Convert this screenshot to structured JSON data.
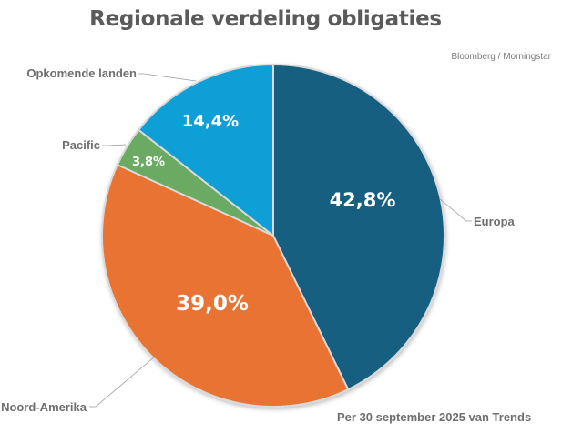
{
  "title": "Regionale verdeling obligaties",
  "source": "Bloomberg / Morningstar",
  "footnote": "Per 30 september 2025 van Trends",
  "slices": [
    {
      "name": "Europa",
      "value": 42.8,
      "label": "42,8%",
      "color": "#165e81"
    },
    {
      "name": "Noord-Amerika",
      "value": 39.0,
      "label": "39,0%",
      "color": "#e87332"
    },
    {
      "name": "Pacific",
      "value": 3.8,
      "label": "3,8%",
      "color": "#6aaa64"
    },
    {
      "name": "Opkomende landen",
      "value": 14.4,
      "label": "14,4%",
      "color": "#119fd6"
    }
  ],
  "chart_data": {
    "type": "pie",
    "title": "Regionale verdeling obligaties",
    "categories": [
      "Europa",
      "Noord-Amerika",
      "Pacific",
      "Opkomende landen"
    ],
    "values": [
      42.8,
      39.0,
      3.8,
      14.4
    ],
    "labels": [
      "42,8%",
      "39,0%",
      "3,8%",
      "14,4%"
    ],
    "colors": [
      "#165e81",
      "#e87332",
      "#6aaa64",
      "#119fd6"
    ],
    "start_angle": "12 o'clock, clockwise",
    "source": "Bloomberg / Morningstar",
    "annotation": "Per 30 september 2025 van Trends",
    "legend": "none (leader-line labels)"
  }
}
